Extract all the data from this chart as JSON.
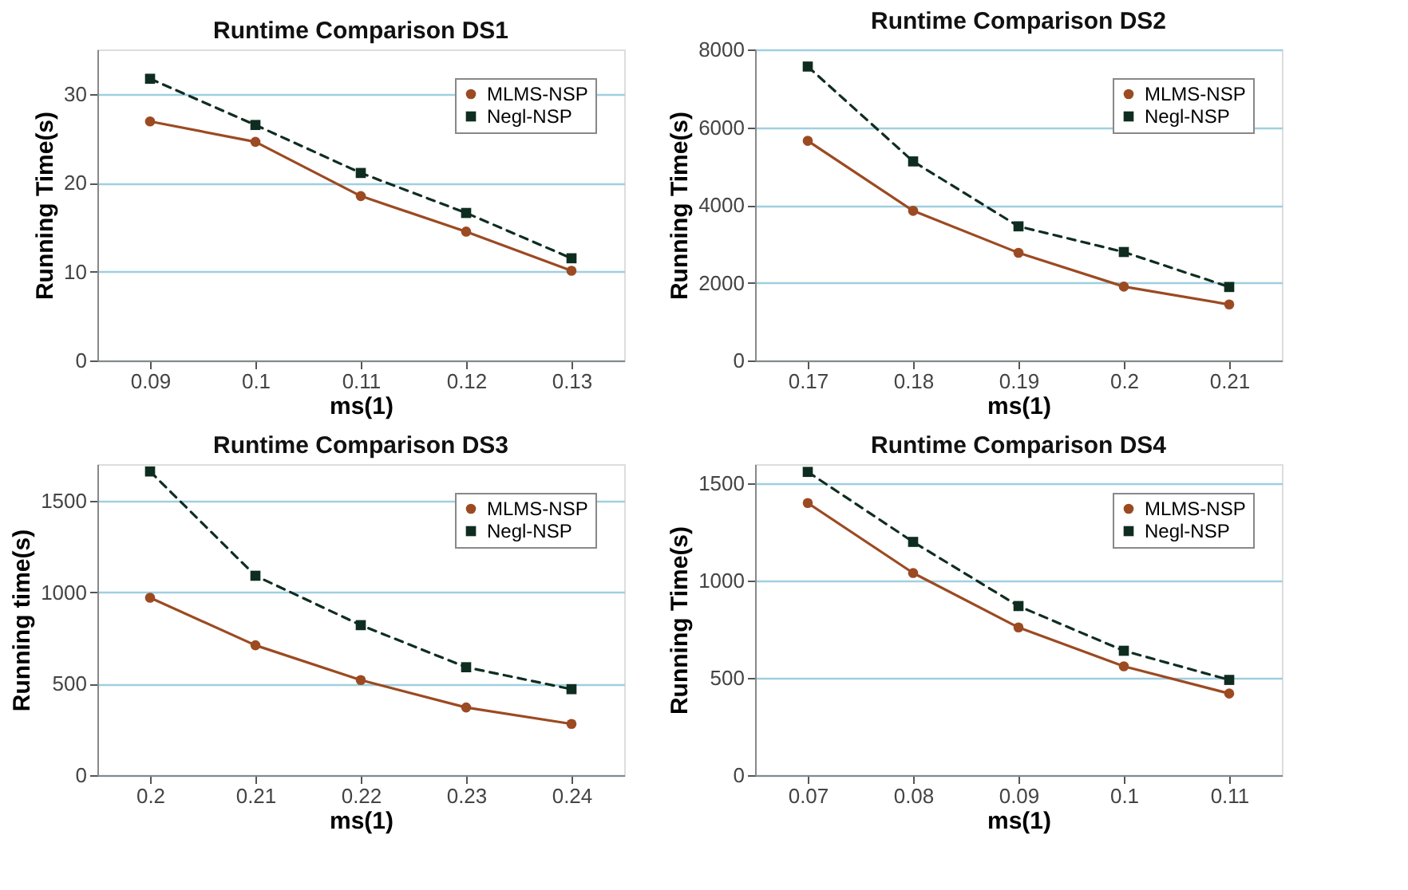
{
  "chart_data": [
    {
      "type": "line",
      "title": "Runtime Comparison DS1",
      "xlabel": "ms(1)",
      "ylabel": "Running Time(s)",
      "x": [
        0.09,
        0.1,
        0.11,
        0.12,
        0.13
      ],
      "xlim": [
        0.085,
        0.135
      ],
      "xticks": [
        0.09,
        0.1,
        0.11,
        0.12,
        0.13
      ],
      "ylim": [
        0,
        35
      ],
      "yticks": [
        0,
        10,
        20,
        30
      ],
      "grid": "y",
      "legend": "top right",
      "series": [
        {
          "name": "MLMS-NSP",
          "color": "#9c4a22",
          "marker": "circle",
          "line_style": "solid",
          "values": [
            26.9,
            24.6,
            18.5,
            14.5,
            10.1
          ]
        },
        {
          "name": "Negl-NSP",
          "color": "#0e2d20",
          "marker": "square",
          "line_style": "dashed",
          "values": [
            31.7,
            26.5,
            21.1,
            16.6,
            11.5
          ]
        }
      ]
    },
    {
      "type": "line",
      "title": "Runtime Comparison DS2",
      "xlabel": "ms(1)",
      "ylabel": "Running Time(s)",
      "x": [
        0.17,
        0.18,
        0.19,
        0.2,
        0.21
      ],
      "xlim": [
        0.165,
        0.215
      ],
      "xticks": [
        0.17,
        0.18,
        0.19,
        0.2,
        0.21
      ],
      "ylim": [
        0,
        8000
      ],
      "yticks": [
        0,
        2000,
        4000,
        6000,
        8000
      ],
      "grid": "y",
      "legend": "top right",
      "series": [
        {
          "name": "MLMS-NSP",
          "color": "#9c4a22",
          "marker": "circle",
          "line_style": "solid",
          "values": [
            5650,
            3850,
            2770,
            1900,
            1440
          ]
        },
        {
          "name": "Negl-NSP",
          "color": "#0e2d20",
          "marker": "square",
          "line_style": "dashed",
          "values": [
            7560,
            5120,
            3450,
            2790,
            1890
          ]
        }
      ]
    },
    {
      "type": "line",
      "title": "Runtime Comparison DS3",
      "xlabel": "ms(1)",
      "ylabel": "Running time(s)",
      "x": [
        0.2,
        0.21,
        0.22,
        0.23,
        0.24
      ],
      "xlim": [
        0.195,
        0.245
      ],
      "xticks": [
        0.2,
        0.21,
        0.22,
        0.23,
        0.24
      ],
      "ylim": [
        0,
        1700
      ],
      "yticks": [
        0,
        500,
        1000,
        1500
      ],
      "grid": "y",
      "legend": "top right",
      "series": [
        {
          "name": "MLMS-NSP",
          "color": "#9c4a22",
          "marker": "circle",
          "line_style": "solid",
          "values": [
            970,
            710,
            520,
            370,
            280
          ]
        },
        {
          "name": "Negl-NSP",
          "color": "#0e2d20",
          "marker": "square",
          "line_style": "dashed",
          "values": [
            1660,
            1090,
            820,
            590,
            470
          ]
        }
      ]
    },
    {
      "type": "line",
      "title": "Runtime Comparison DS4",
      "xlabel": "ms(1)",
      "ylabel": "Running Time(s)",
      "x": [
        0.07,
        0.08,
        0.09,
        0.1,
        0.11
      ],
      "xlim": [
        0.065,
        0.115
      ],
      "xticks": [
        0.07,
        0.08,
        0.09,
        0.1,
        0.11
      ],
      "ylim": [
        0,
        1600
      ],
      "yticks": [
        0,
        500,
        1000,
        1500
      ],
      "grid": "y",
      "legend": "top right",
      "series": [
        {
          "name": "MLMS-NSP",
          "color": "#9c4a22",
          "marker": "circle",
          "line_style": "solid",
          "values": [
            1400,
            1040,
            760,
            560,
            420
          ]
        },
        {
          "name": "Negl-NSP",
          "color": "#0e2d20",
          "marker": "square",
          "line_style": "dashed",
          "values": [
            1560,
            1200,
            870,
            640,
            490
          ]
        }
      ]
    }
  ]
}
